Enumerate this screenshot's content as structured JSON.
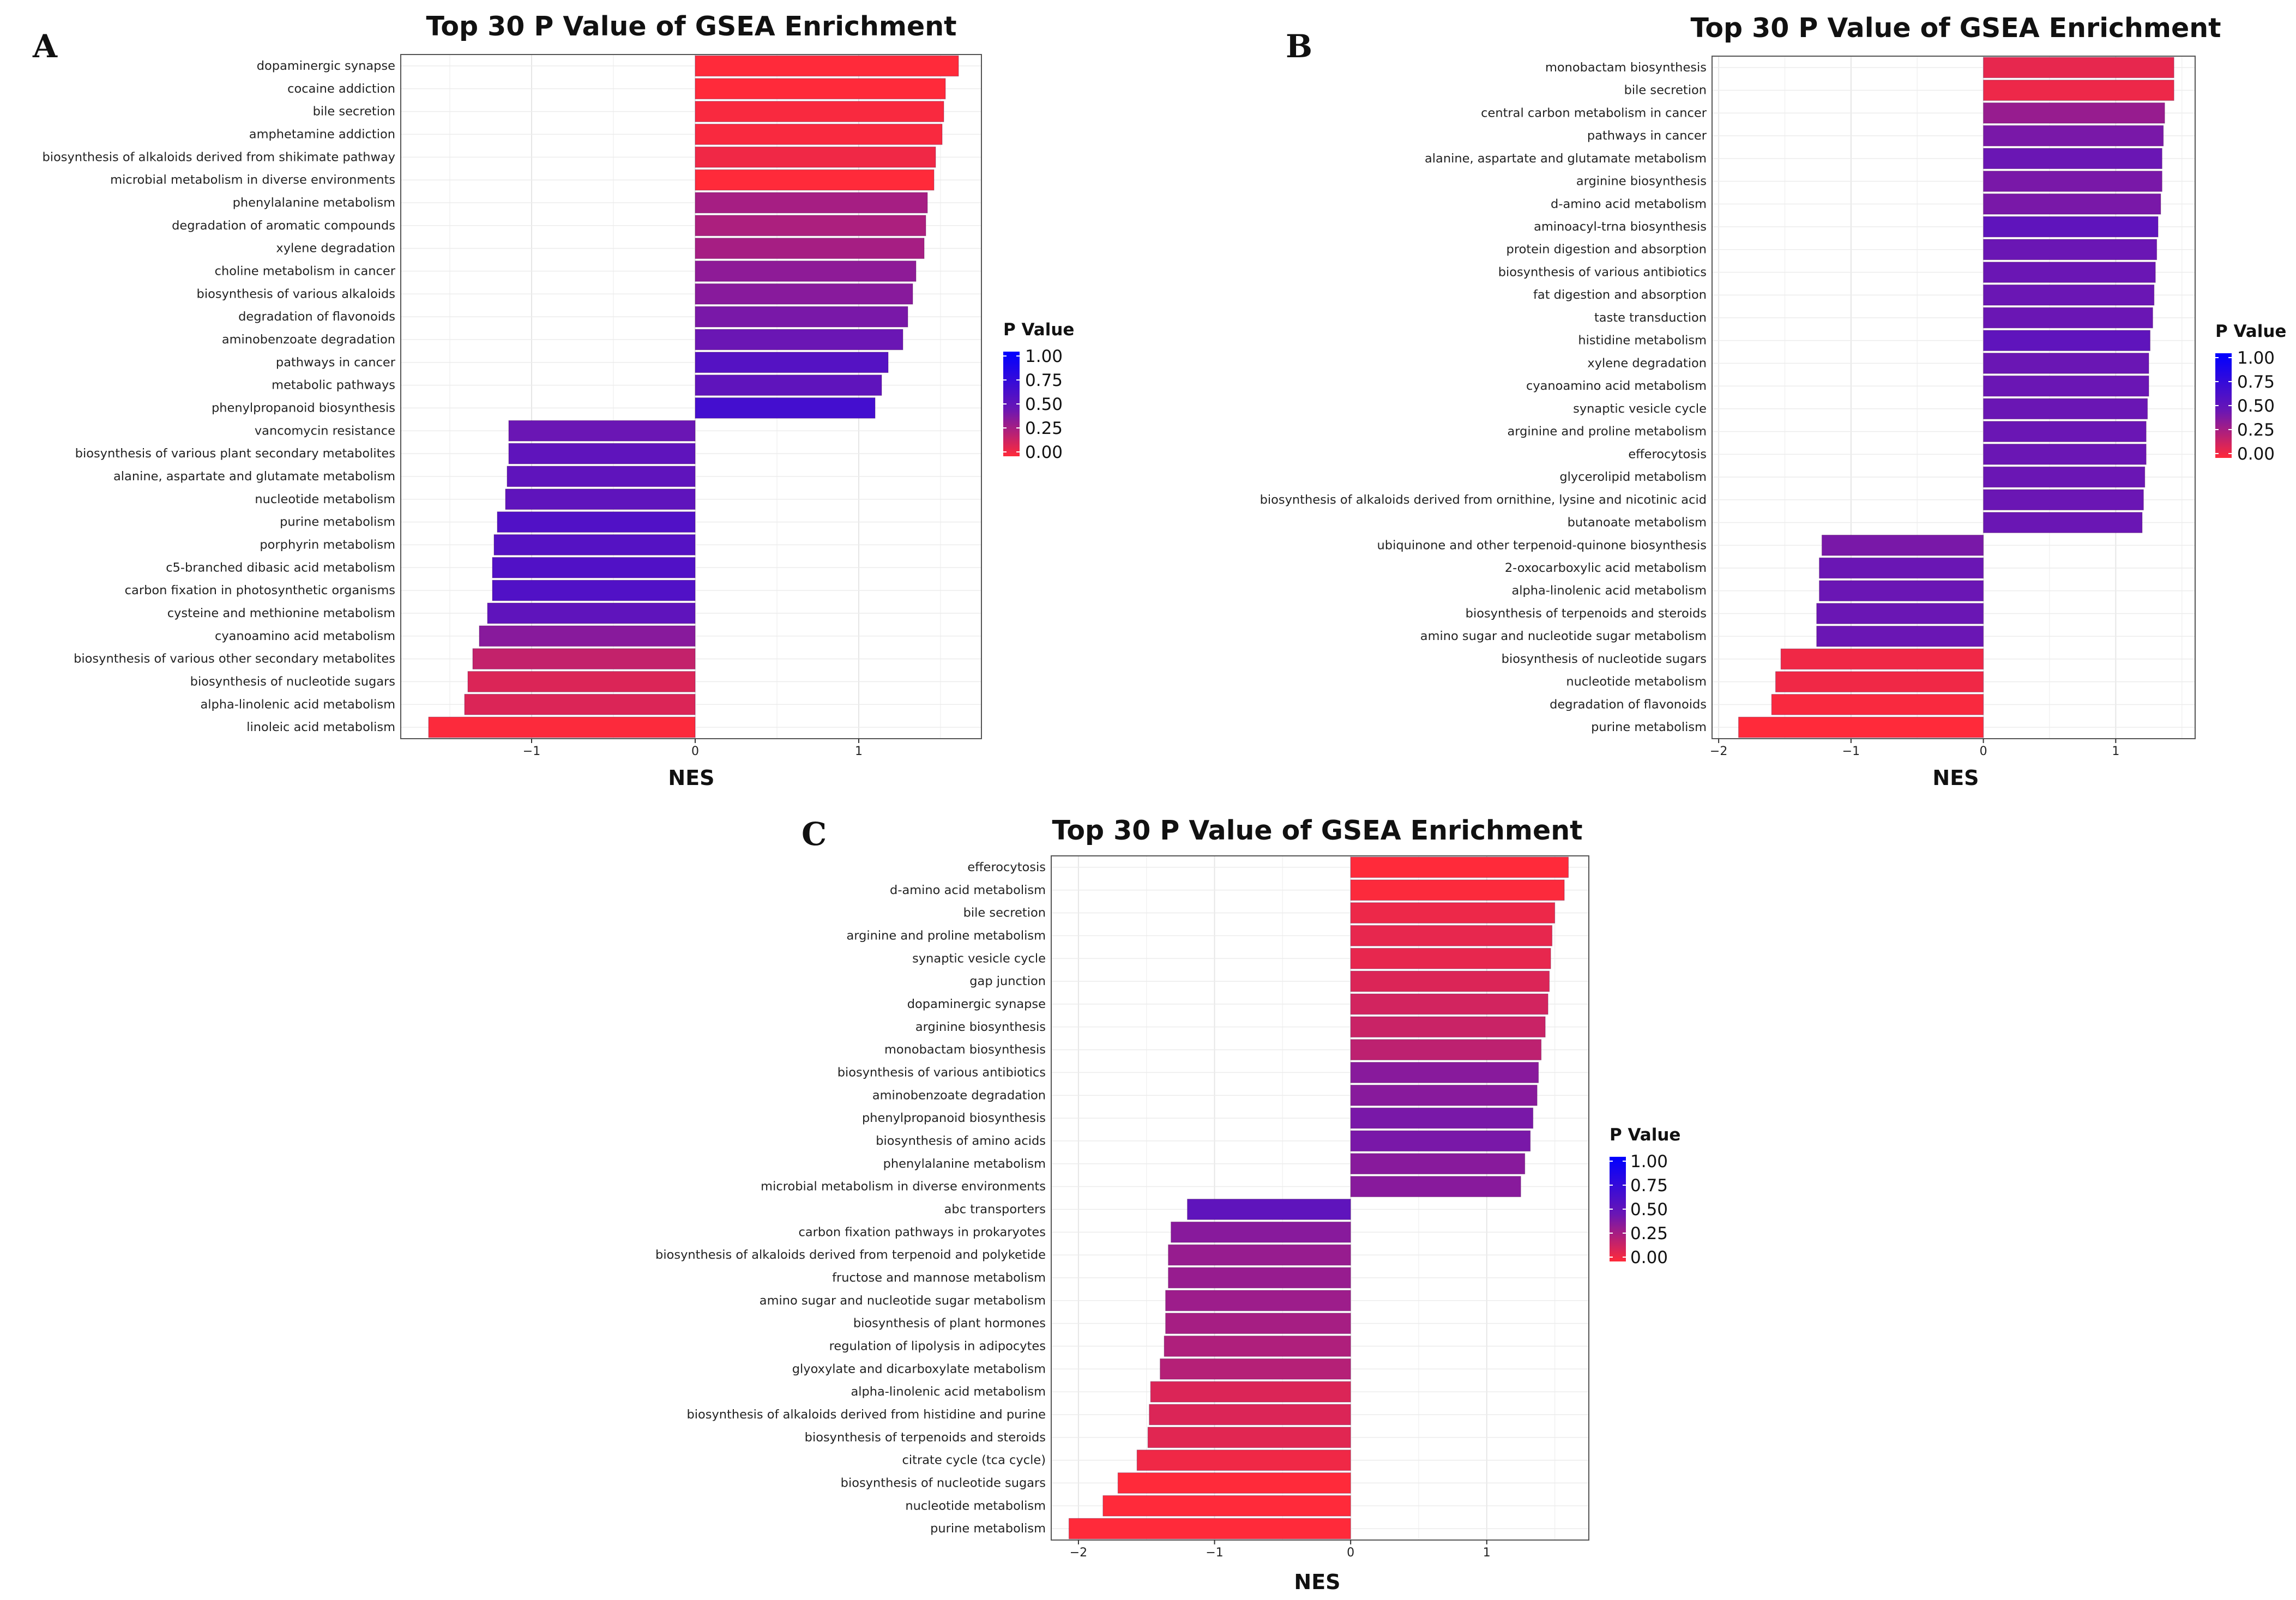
{
  "legend": {
    "title": "P Value",
    "ticks": [
      "1.00",
      "0.75",
      "0.50",
      "0.25",
      "0.00"
    ],
    "gradient": [
      "#0000ff",
      "#6a16b4",
      "#ff2a3a"
    ]
  },
  "chart_data": [
    {
      "panel": "A",
      "type": "bar",
      "orientation": "horizontal",
      "title": "Top 30 P Value of GSEA Enrichment",
      "xlabel": "NES",
      "ylabel": "",
      "xlim": [
        -1.8,
        1.75
      ],
      "xticks": [
        -1,
        0,
        1
      ],
      "xtick_labels": [
        "−1",
        "0",
        "1"
      ],
      "legend_position": "right",
      "categories": [
        "dopaminergic synapse",
        "cocaine addiction",
        "bile secretion",
        "amphetamine addiction",
        "biosynthesis of alkaloids derived from shikimate pathway",
        "microbial metabolism in diverse environments",
        "phenylalanine metabolism",
        "degradation of aromatic compounds",
        "xylene degradation",
        "choline metabolism in cancer",
        "biosynthesis of various alkaloids",
        "degradation of flavonoids",
        "aminobenzoate degradation",
        "pathways in cancer",
        "metabolic pathways",
        "phenylpropanoid biosynthesis",
        "vancomycin resistance",
        "biosynthesis of various plant secondary metabolites",
        "alanine, aspartate and glutamate metabolism",
        "nucleotide metabolism",
        "purine metabolism",
        "porphyrin metabolism",
        "c5-branched dibasic acid metabolism",
        "carbon fixation in photosynthetic organisms",
        "cysteine and methionine metabolism",
        "cyanoamino acid metabolism",
        "biosynthesis of various other secondary metabolites",
        "biosynthesis of nucleotide sugars",
        "alpha-linolenic acid metabolism",
        "linoleic acid metabolism"
      ],
      "values": [
        1.61,
        1.53,
        1.52,
        1.51,
        1.47,
        1.46,
        1.42,
        1.41,
        1.4,
        1.35,
        1.33,
        1.3,
        1.27,
        1.18,
        1.14,
        1.1,
        -1.14,
        -1.14,
        -1.15,
        -1.16,
        -1.21,
        -1.23,
        -1.24,
        -1.24,
        -1.27,
        -1.32,
        -1.36,
        -1.39,
        -1.41,
        -1.63
      ],
      "p_values": [
        0.0,
        0.0,
        0.02,
        0.02,
        0.05,
        0.0,
        0.3,
        0.28,
        0.3,
        0.38,
        0.4,
        0.45,
        0.5,
        0.6,
        0.55,
        0.68,
        0.5,
        0.55,
        0.55,
        0.55,
        0.62,
        0.6,
        0.62,
        0.62,
        0.55,
        0.4,
        0.2,
        0.12,
        0.12,
        0.01
      ]
    },
    {
      "panel": "B",
      "type": "bar",
      "orientation": "horizontal",
      "title": "Top 30 P Value of GSEA Enrichment",
      "xlabel": "NES",
      "ylabel": "",
      "xlim": [
        -2.05,
        1.6
      ],
      "xticks": [
        -2,
        -1,
        0,
        1
      ],
      "xtick_labels": [
        "−2",
        "−1",
        "0",
        "1"
      ],
      "legend_position": "right",
      "categories": [
        "monobactam biosynthesis",
        "bile secretion",
        "central carbon metabolism in cancer",
        "pathways in cancer",
        "alanine, aspartate and glutamate metabolism",
        "arginine biosynthesis",
        "d-amino acid metabolism",
        "aminoacyl-trna biosynthesis",
        "protein digestion and absorption",
        "biosynthesis of various antibiotics",
        "fat digestion and absorption",
        "taste transduction",
        "histidine metabolism",
        "xylene degradation",
        "cyanoamino acid metabolism",
        "synaptic vesicle cycle",
        "arginine and proline metabolism",
        "efferocytosis",
        "glycerolipid metabolism",
        "biosynthesis of alkaloids derived from ornithine, lysine and nicotinic acid",
        "butanoate metabolism",
        "ubiquinone and other terpenoid-quinone biosynthesis",
        "2-oxocarboxylic acid metabolism",
        "alpha-linolenic acid metabolism",
        "biosynthesis of terpenoids and steroids",
        "amino sugar and nucleotide sugar metabolism",
        "biosynthesis of nucleotide sugars",
        "nucleotide metabolism",
        "degradation of flavonoids",
        "purine metabolism"
      ],
      "values": [
        1.44,
        1.44,
        1.37,
        1.36,
        1.35,
        1.35,
        1.34,
        1.32,
        1.31,
        1.3,
        1.29,
        1.28,
        1.26,
        1.25,
        1.25,
        1.24,
        1.23,
        1.23,
        1.22,
        1.21,
        1.2,
        -1.22,
        -1.24,
        -1.24,
        -1.26,
        -1.26,
        -1.53,
        -1.57,
        -1.6,
        -1.85
      ],
      "p_values": [
        0.08,
        0.06,
        0.35,
        0.45,
        0.5,
        0.45,
        0.45,
        0.55,
        0.5,
        0.5,
        0.5,
        0.5,
        0.55,
        0.5,
        0.5,
        0.5,
        0.5,
        0.5,
        0.5,
        0.5,
        0.5,
        0.45,
        0.5,
        0.5,
        0.5,
        0.5,
        0.05,
        0.05,
        0.02,
        0.0
      ]
    },
    {
      "panel": "C",
      "type": "bar",
      "orientation": "horizontal",
      "title": "Top 30 P Value of GSEA Enrichment",
      "xlabel": "NES",
      "ylabel": "",
      "xlim": [
        -2.2,
        1.75
      ],
      "xticks": [
        -2,
        -1,
        0,
        1
      ],
      "xtick_labels": [
        "−2",
        "−1",
        "0",
        "1"
      ],
      "legend_position": "right",
      "categories": [
        "efferocytosis",
        "d-amino acid metabolism",
        "bile secretion",
        "arginine and proline metabolism",
        "synaptic vesicle cycle",
        "gap junction",
        "dopaminergic synapse",
        "arginine biosynthesis",
        "monobactam biosynthesis",
        "biosynthesis of various antibiotics",
        "aminobenzoate degradation",
        "phenylpropanoid biosynthesis",
        "biosynthesis of amino acids",
        "phenylalanine metabolism",
        "microbial metabolism in diverse environments",
        "abc transporters",
        "carbon fixation pathways in prokaryotes",
        "biosynthesis of alkaloids derived from terpenoid and polyketide",
        "fructose and mannose metabolism",
        "amino sugar and nucleotide sugar metabolism",
        "biosynthesis of plant hormones",
        "regulation of lipolysis in adipocytes",
        "glyoxylate and dicarboxylate metabolism",
        "alpha-linolenic acid metabolism",
        "biosynthesis of alkaloids derived from histidine and purine",
        "biosynthesis of terpenoids and steroids",
        "citrate cycle (tca cycle)",
        "biosynthesis of nucleotide sugars",
        "nucleotide metabolism",
        "purine metabolism"
      ],
      "values": [
        1.6,
        1.57,
        1.5,
        1.48,
        1.47,
        1.46,
        1.45,
        1.43,
        1.4,
        1.38,
        1.37,
        1.34,
        1.32,
        1.28,
        1.25,
        -1.2,
        -1.32,
        -1.34,
        -1.34,
        -1.36,
        -1.36,
        -1.37,
        -1.4,
        -1.47,
        -1.48,
        -1.49,
        -1.57,
        -1.71,
        -1.82,
        -2.07
      ],
      "p_values": [
        0.0,
        0.01,
        0.06,
        0.08,
        0.08,
        0.12,
        0.15,
        0.18,
        0.22,
        0.4,
        0.4,
        0.45,
        0.45,
        0.4,
        0.4,
        0.55,
        0.4,
        0.35,
        0.35,
        0.33,
        0.3,
        0.27,
        0.25,
        0.12,
        0.12,
        0.1,
        0.05,
        0.0,
        0.0,
        0.0
      ]
    }
  ]
}
